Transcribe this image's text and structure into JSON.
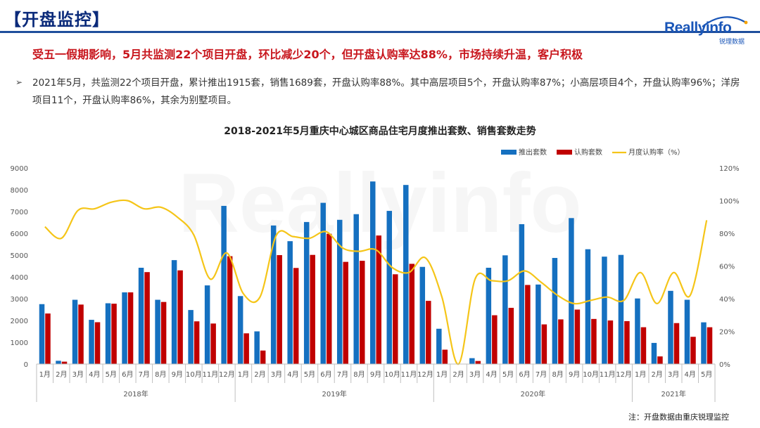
{
  "header": {
    "title": "【开盘监控】"
  },
  "logo": {
    "text": "Reallyinfo",
    "sub": "锐理数据"
  },
  "headline": "受五一假期影响，5月共监测22个项目开盘，环比减少20个，但开盘认购率达88%，市场持续升温，客户积极",
  "summary": {
    "bullet": "➢",
    "text": "2021年5月，共监测22个项目开盘，累计推出1915套，销售1689套，开盘认购率88%。其中高层项目5个，开盘认购率87%；小高层项目4个，开盘认购率96%；洋房项目11个，开盘认购率86%，其余为别墅项目。"
  },
  "footnote": "注：开盘数据由重庆锐理监控",
  "colors": {
    "supply": "#1570c0",
    "sold": "#c00000",
    "rate": "#f5c518"
  },
  "chart_data": {
    "type": "bar",
    "title": "2018-2021年5月重庆中心城区商品住宅月度推出套数、销售套数走势",
    "legend": [
      "推出套数",
      "认购套数",
      "月度认购率（%）"
    ],
    "legend_position": "top-right",
    "y_left": {
      "min": 0,
      "max": 9000,
      "ticks": [
        "0",
        "1000",
        "2000",
        "3000",
        "4000",
        "5000",
        "6000",
        "7000",
        "8000",
        "9000"
      ]
    },
    "y_right": {
      "min": 0,
      "max": 120,
      "ticks": [
        "0%",
        "20%",
        "40%",
        "60%",
        "80%",
        "100%",
        "120%"
      ]
    },
    "years": [
      {
        "label": "2018年",
        "months": 12
      },
      {
        "label": "2019年",
        "months": 12
      },
      {
        "label": "2020年",
        "months": 12
      },
      {
        "label": "2021年",
        "months": 5
      }
    ],
    "categories": [
      "1月",
      "2月",
      "3月",
      "4月",
      "5月",
      "6月",
      "7月",
      "8月",
      "9月",
      "10月",
      "11月",
      "12月",
      "1月",
      "2月",
      "3月",
      "4月",
      "5月",
      "6月",
      "7月",
      "8月",
      "9月",
      "10月",
      "11月",
      "12月",
      "1月",
      "2月",
      "3月",
      "4月",
      "5月",
      "6月",
      "7月",
      "8月",
      "9月",
      "10月",
      "11月",
      "12月",
      "1月",
      "2月",
      "3月",
      "4月",
      "5月"
    ],
    "series": [
      {
        "name": "推出套数",
        "kind": "bar",
        "values": [
          2750,
          150,
          2950,
          2030,
          2790,
          3290,
          4420,
          2950,
          4770,
          2480,
          3610,
          7260,
          3120,
          1500,
          6360,
          5640,
          6520,
          7400,
          6620,
          6880,
          8380,
          7030,
          8220,
          4460,
          1620,
          0,
          270,
          4420,
          4990,
          6420,
          3650,
          4870,
          6700,
          5270,
          4930,
          5010,
          3010,
          970,
          3360,
          2950,
          1915
        ]
      },
      {
        "name": "认购套数",
        "kind": "bar",
        "values": [
          2320,
          110,
          2730,
          1920,
          2770,
          3290,
          4220,
          2850,
          4300,
          1960,
          1860,
          4950,
          1410,
          620,
          5000,
          4410,
          5010,
          5980,
          4690,
          4740,
          5900,
          4120,
          4600,
          2900,
          660,
          0,
          140,
          2240,
          2580,
          3630,
          1820,
          2050,
          2500,
          2070,
          2000,
          1970,
          1690,
          350,
          1880,
          1250,
          1689
        ]
      },
      {
        "name": "月度认购率（%）",
        "kind": "line",
        "values": [
          84,
          77,
          94,
          95,
          99,
          100,
          95,
          96,
          90,
          79,
          52,
          68,
          43,
          41,
          79,
          78,
          77,
          81,
          71,
          69,
          70,
          59,
          56,
          65,
          41,
          0,
          52,
          51,
          51,
          57,
          50,
          42,
          37,
          39,
          41,
          39,
          56,
          37,
          56,
          42,
          88
        ]
      }
    ]
  }
}
